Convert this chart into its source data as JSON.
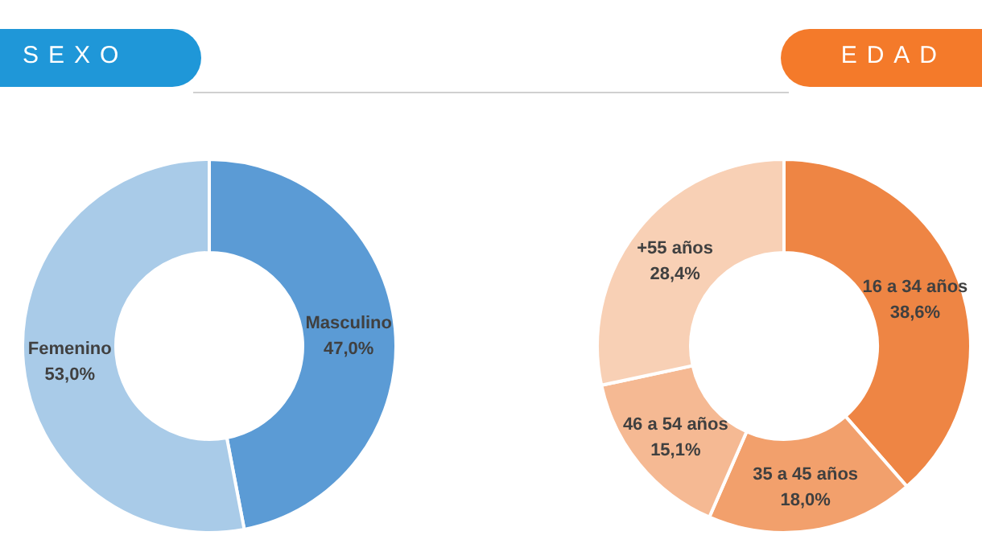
{
  "chart_data": [
    {
      "type": "donut",
      "title": "SEXO",
      "categories": [
        "Masculino",
        "Femenino"
      ],
      "values": [
        47.0,
        53.0
      ],
      "value_labels": [
        "47,0%",
        "53,0%"
      ],
      "colors": [
        "#5b9bd5",
        "#a9cbe8"
      ]
    },
    {
      "type": "donut",
      "title": "EDAD",
      "categories": [
        "16 a 34 años",
        "35 a 45 años",
        "46 a 54 años",
        "+55 años"
      ],
      "values": [
        38.6,
        18.0,
        15.1,
        28.4
      ],
      "value_labels": [
        "38,6%",
        "18,0%",
        "15,1%",
        "28,4%"
      ],
      "colors": [
        "#ee8544",
        "#f2a06c",
        "#f5b993",
        "#f8d0b5"
      ]
    }
  ]
}
